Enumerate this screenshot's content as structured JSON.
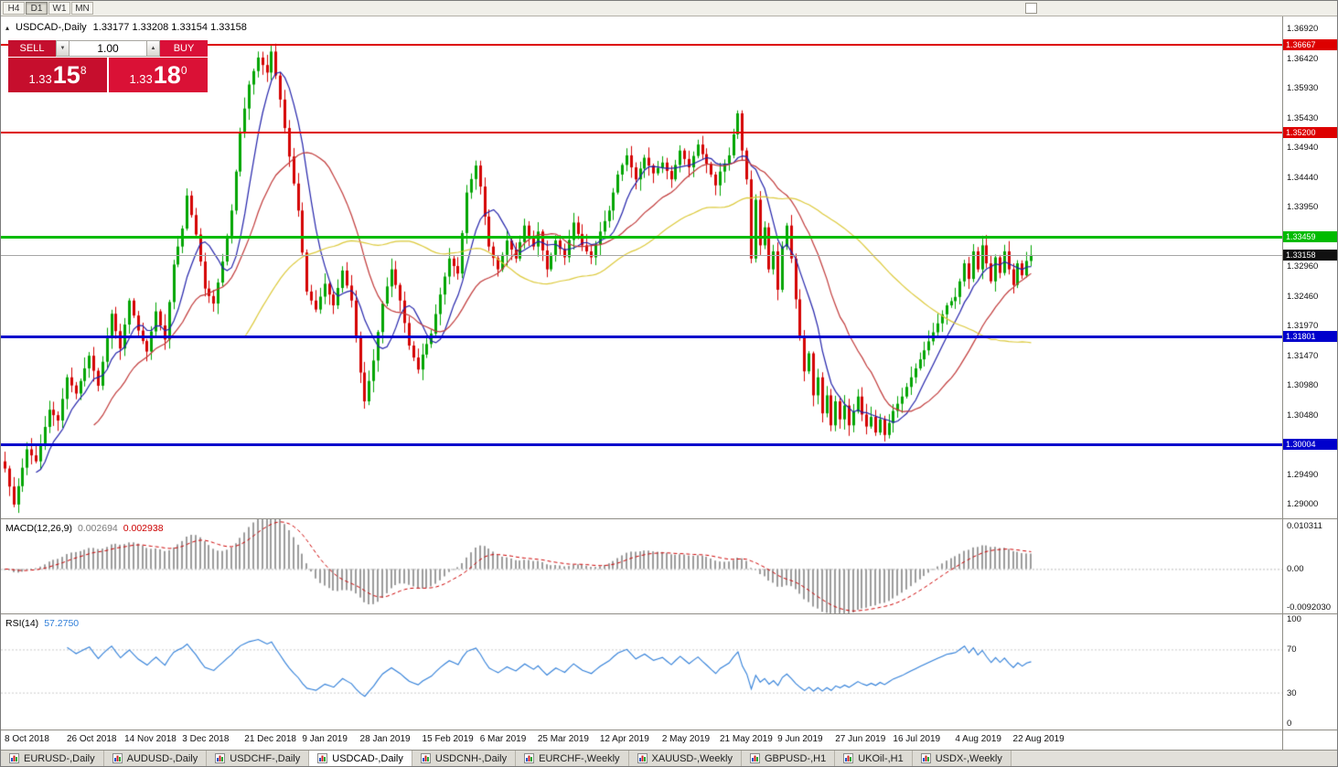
{
  "toolbar": {
    "timeframes": [
      "H4",
      "D1",
      "W1",
      "MN"
    ],
    "active": "D1"
  },
  "header": {
    "symbol": "USDCAD-,Daily",
    "ohlc": "1.33177 1.33208 1.33154 1.33158"
  },
  "icons": {
    "panel_toggle": "▴",
    "volume_down": "▼",
    "volume_up": "▲"
  },
  "trade_panel": {
    "sell_label": "SELL",
    "buy_label": "BUY",
    "volume": "1.00",
    "sell_price": {
      "base": "1.33",
      "big": "15",
      "sup": "8"
    },
    "buy_price": {
      "base": "1.33",
      "big": "18",
      "sup": "0"
    }
  },
  "colors": {
    "bull": "#00A500",
    "bear": "#D40000",
    "macd_hist": "#9C9C9C",
    "macd_signal": "#CC0000",
    "rsi_line": "#2F7ED8",
    "current_line": "#A6A6A6",
    "current_badge": "#111111",
    "level_red": "#DD0000",
    "level_green": "#00BB00",
    "level_blue": "#0000CC",
    "sell_button": "#C40F2E",
    "buy_button": "#DA1038"
  },
  "tabs": {
    "items": [
      "EURUSD-,Daily",
      "AUDUSD-,Daily",
      "USDCHF-,Daily",
      "USDCAD-,Daily",
      "USDCNH-,Daily",
      "EURCHF-,Weekly",
      "XAUUSD-,Weekly",
      "GBPUSD-,H1",
      "UKOil-,H1",
      "USDX-,Weekly"
    ],
    "active_index": 3
  },
  "chart_data": {
    "type": "candlestick",
    "symbol": "USDCAD",
    "timeframe": "Daily",
    "ohlc_current": {
      "open": 1.33177,
      "high": 1.33208,
      "low": 1.33154,
      "close": 1.33158
    },
    "candle_count": 232,
    "y_axis": {
      "top": 1.37135,
      "bottom": 1.2877,
      "ticks": [
        {
          "value": 1.3692,
          "label": "1.36920"
        },
        {
          "value": 1.3642,
          "label": "1.36420"
        },
        {
          "value": 1.3593,
          "label": "1.35930"
        },
        {
          "value": 1.3543,
          "label": "1.35430"
        },
        {
          "value": 1.3494,
          "label": "1.34940"
        },
        {
          "value": 1.3444,
          "label": "1.34440"
        },
        {
          "value": 1.3395,
          "label": "1.33950"
        },
        {
          "value": 1.3296,
          "label": "1.32960"
        },
        {
          "value": 1.3246,
          "label": "1.32460"
        },
        {
          "value": 1.3197,
          "label": "1.31970"
        },
        {
          "value": 1.3147,
          "label": "1.31470"
        },
        {
          "value": 1.3098,
          "label": "1.30980"
        },
        {
          "value": 1.3048,
          "label": "1.30480"
        },
        {
          "value": 1.2949,
          "label": "1.29490"
        },
        {
          "value": 1.29,
          "label": "1.29000"
        }
      ]
    },
    "levels": [
      {
        "price": 1.36667,
        "label": "1.36667",
        "color": "#DD0000",
        "width": 2
      },
      {
        "price": 1.352,
        "label": "1.35200",
        "color": "#DD0000",
        "width": 2
      },
      {
        "price": 1.33459,
        "label": "1.33459",
        "color": "#00BB00",
        "width": 3
      },
      {
        "price": 1.31801,
        "label": "1.31801",
        "color": "#0000CC",
        "width": 3
      },
      {
        "price": 1.30004,
        "label": "1.30004",
        "color": "#0000CC",
        "width": 3
      }
    ],
    "current_price": {
      "price": 1.33158,
      "label": "1.33158"
    },
    "x_axis_dates": [
      {
        "i": 0,
        "label": "8 Oct 2018"
      },
      {
        "i": 14,
        "label": "26 Oct 2018"
      },
      {
        "i": 27,
        "label": "14 Nov 2018"
      },
      {
        "i": 40,
        "label": "3 Dec 2018"
      },
      {
        "i": 54,
        "label": "21 Dec 2018"
      },
      {
        "i": 67,
        "label": "9 Jan 2019"
      },
      {
        "i": 80,
        "label": "28 Jan 2019"
      },
      {
        "i": 94,
        "label": "15 Feb 2019"
      },
      {
        "i": 107,
        "label": "6 Mar 2019"
      },
      {
        "i": 120,
        "label": "25 Mar 2019"
      },
      {
        "i": 134,
        "label": "12 Apr 2019"
      },
      {
        "i": 148,
        "label": "2 May 2019"
      },
      {
        "i": 161,
        "label": "21 May 2019"
      },
      {
        "i": 174,
        "label": "9 Jun 2019"
      },
      {
        "i": 187,
        "label": "27 Jun 2019"
      },
      {
        "i": 200,
        "label": "16 Jul 2019"
      },
      {
        "i": 214,
        "label": "4 Aug 2019"
      },
      {
        "i": 227,
        "label": "22 Aug 2019"
      }
    ],
    "close_path": [
      [
        0,
        1.296
      ],
      [
        2,
        1.29
      ],
      [
        5,
        1.2992
      ],
      [
        7,
        1.2972
      ],
      [
        10,
        1.3058
      ],
      [
        12,
        1.304
      ],
      [
        14,
        1.3112
      ],
      [
        16,
        1.3085
      ],
      [
        19,
        1.3148
      ],
      [
        21,
        1.3098
      ],
      [
        24,
        1.3218
      ],
      [
        26,
        1.316
      ],
      [
        28,
        1.324
      ],
      [
        30,
        1.319
      ],
      [
        32,
        1.3155
      ],
      [
        34,
        1.3222
      ],
      [
        36,
        1.3175
      ],
      [
        38,
        1.33
      ],
      [
        40,
        1.336
      ],
      [
        41,
        1.3415
      ],
      [
        43,
        1.335
      ],
      [
        45,
        1.326
      ],
      [
        47,
        1.3235
      ],
      [
        49,
        1.3305
      ],
      [
        51,
        1.339
      ],
      [
        53,
        1.352
      ],
      [
        55,
        1.36
      ],
      [
        57,
        1.3645
      ],
      [
        59,
        1.362
      ],
      [
        60,
        1.3655
      ],
      [
        62,
        1.3575
      ],
      [
        64,
        1.348
      ],
      [
        66,
        1.339
      ],
      [
        67,
        1.332
      ],
      [
        68,
        1.3255
      ],
      [
        70,
        1.3225
      ],
      [
        72,
        1.3268
      ],
      [
        74,
        1.3232
      ],
      [
        76,
        1.329
      ],
      [
        78,
        1.324
      ],
      [
        79,
        1.318
      ],
      [
        80,
        1.312
      ],
      [
        81,
        1.3072
      ],
      [
        83,
        1.314
      ],
      [
        85,
        1.3235
      ],
      [
        87,
        1.3292
      ],
      [
        89,
        1.324
      ],
      [
        91,
        1.3165
      ],
      [
        93,
        1.3125
      ],
      [
        94,
        1.315
      ],
      [
        96,
        1.3185
      ],
      [
        98,
        1.325
      ],
      [
        100,
        1.331
      ],
      [
        102,
        1.3285
      ],
      [
        104,
        1.342
      ],
      [
        106,
        1.3465
      ],
      [
        107,
        1.343
      ],
      [
        109,
        1.333
      ],
      [
        111,
        1.3292
      ],
      [
        113,
        1.334
      ],
      [
        115,
        1.331
      ],
      [
        117,
        1.3365
      ],
      [
        119,
        1.333
      ],
      [
        120,
        1.3355
      ],
      [
        122,
        1.3292
      ],
      [
        124,
        1.334
      ],
      [
        126,
        1.3312
      ],
      [
        128,
        1.337
      ],
      [
        130,
        1.3332
      ],
      [
        132,
        1.3312
      ],
      [
        134,
        1.3355
      ],
      [
        136,
        1.339
      ],
      [
        138,
        1.345
      ],
      [
        140,
        1.3482
      ],
      [
        142,
        1.3442
      ],
      [
        144,
        1.3478
      ],
      [
        146,
        1.3452
      ],
      [
        148,
        1.347
      ],
      [
        150,
        1.3442
      ],
      [
        152,
        1.349
      ],
      [
        154,
        1.3462
      ],
      [
        156,
        1.35
      ],
      [
        158,
        1.3468
      ],
      [
        160,
        1.3432
      ],
      [
        161,
        1.3455
      ],
      [
        163,
        1.3482
      ],
      [
        165,
        1.3552
      ],
      [
        166,
        1.349
      ],
      [
        167,
        1.3442
      ],
      [
        168,
        1.331
      ],
      [
        169,
        1.3408
      ],
      [
        170,
        1.3332
      ],
      [
        171,
        1.3362
      ],
      [
        172,
        1.3292
      ],
      [
        173,
        1.3322
      ],
      [
        174,
        1.3258
      ],
      [
        175,
        1.333
      ],
      [
        176,
        1.3365
      ],
      [
        177,
        1.331
      ],
      [
        178,
        1.3242
      ],
      [
        179,
        1.318
      ],
      [
        180,
        1.3122
      ],
      [
        181,
        1.3152
      ],
      [
        182,
        1.3082
      ],
      [
        183,
        1.3112
      ],
      [
        184,
        1.3052
      ],
      [
        185,
        1.3082
      ],
      [
        186,
        1.3032
      ],
      [
        187,
        1.3072
      ],
      [
        188,
        1.3042
      ],
      [
        189,
        1.3065
      ],
      [
        190,
        1.3032
      ],
      [
        191,
        1.3055
      ],
      [
        192,
        1.308
      ],
      [
        193,
        1.305
      ],
      [
        194,
        1.303
      ],
      [
        195,
        1.3046
      ],
      [
        196,
        1.302
      ],
      [
        197,
        1.3042
      ],
      [
        198,
        1.3016
      ],
      [
        199,
        1.3036
      ],
      [
        200,
        1.3056
      ],
      [
        202,
        1.308
      ],
      [
        204,
        1.3112
      ],
      [
        206,
        1.3142
      ],
      [
        208,
        1.3172
      ],
      [
        210,
        1.3202
      ],
      [
        212,
        1.3232
      ],
      [
        214,
        1.3246
      ],
      [
        215,
        1.3272
      ],
      [
        216,
        1.3302
      ],
      [
        217,
        1.3276
      ],
      [
        218,
        1.3322
      ],
      [
        219,
        1.3292
      ],
      [
        220,
        1.3332
      ],
      [
        221,
        1.3302
      ],
      [
        222,
        1.3272
      ],
      [
        223,
        1.3312
      ],
      [
        224,
        1.3286
      ],
      [
        225,
        1.3322
      ],
      [
        226,
        1.3292
      ],
      [
        227,
        1.3266
      ],
      [
        228,
        1.3302
      ],
      [
        229,
        1.3282
      ],
      [
        230,
        1.3306
      ],
      [
        231,
        1.33158
      ]
    ],
    "moving_averages": [
      {
        "period": 8,
        "color": "#2222AA"
      },
      {
        "period": 21,
        "color": "#C03838"
      },
      {
        "period": 55,
        "color": "#DCC93A"
      }
    ],
    "indicators": {
      "macd": {
        "label": "MACD(12,26,9)",
        "fast": 12,
        "slow": 26,
        "signal": 9,
        "value_main": "0.002694",
        "value_signal": "0.002938",
        "axis": {
          "top": 0.010311,
          "bottom": -0.009203
        },
        "axis_labels": [
          "0.010311",
          "0.00",
          "-0.0092030"
        ]
      },
      "rsi": {
        "label": "RSI(14)",
        "period": 14,
        "value": "57.2750",
        "levels": [
          100,
          70,
          30,
          0
        ],
        "axis_labels": [
          "100",
          "70",
          "30",
          "0"
        ]
      }
    }
  }
}
